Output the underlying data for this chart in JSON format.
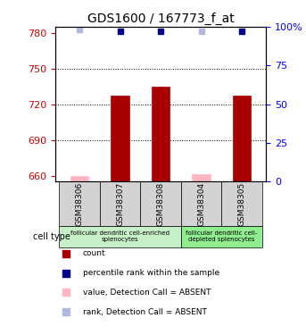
{
  "title": "GDS1600 / 167773_f_at",
  "samples": [
    "GSM38306",
    "GSM38307",
    "GSM38308",
    "GSM38304",
    "GSM38305"
  ],
  "counts": [
    660,
    727,
    735,
    661,
    727
  ],
  "percentile_ranks": [
    98,
    97,
    97,
    97,
    97
  ],
  "absent_flags": [
    true,
    false,
    false,
    true,
    false
  ],
  "ylim_left": [
    655,
    785
  ],
  "ylim_right": [
    0,
    100
  ],
  "yticks_left": [
    660,
    690,
    720,
    750,
    780
  ],
  "yticks_right": [
    0,
    25,
    50,
    75,
    100
  ],
  "ytick_labels_right": [
    "0",
    "25",
    "50",
    "75",
    "100%"
  ],
  "bar_color_normal": "#a80000",
  "bar_color_absent": "#ffb6c1",
  "square_color_normal": "#00008b",
  "square_color_absent": "#b0b8e0",
  "bar_width": 0.45,
  "group_configs": [
    {
      "indices": [
        0,
        1,
        2
      ],
      "label": "follicular dendritic cell-enriched\nsplenocytes",
      "color": "#c8f0c8"
    },
    {
      "indices": [
        3,
        4
      ],
      "label": "follicular dendritic cell-\ndepleted splenocytes",
      "color": "#90ee90"
    }
  ],
  "cell_type_label": "cell type",
  "legend_items": [
    {
      "label": "count",
      "color": "#a80000"
    },
    {
      "label": "percentile rank within the sample",
      "color": "#00008b"
    },
    {
      "label": "value, Detection Call = ABSENT",
      "color": "#ffb6c1"
    },
    {
      "label": "rank, Detection Call = ABSENT",
      "color": "#b0b8e0"
    }
  ],
  "grid_yticks": [
    690,
    720,
    750
  ],
  "right_axis_color": "blue",
  "left_axis_color": "#cc0000"
}
